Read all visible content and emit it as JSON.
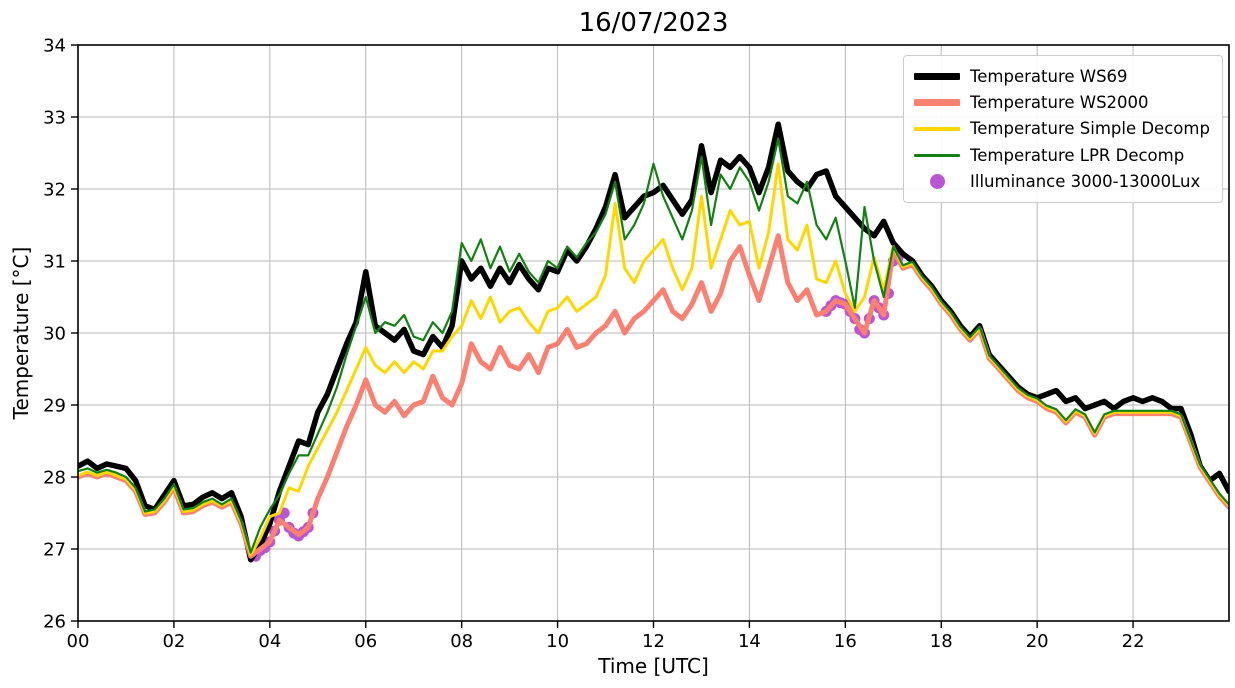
{
  "chart_data": {
    "type": "line",
    "title": "16/07/2023",
    "xlabel": "Time [UTC]",
    "ylabel": "Temperature [°C]",
    "xlim": [
      0,
      24
    ],
    "ylim": [
      26,
      34
    ],
    "grid": true,
    "legend_position": "upper right",
    "x_ticks": {
      "values": [
        0,
        2,
        4,
        6,
        8,
        10,
        12,
        14,
        16,
        18,
        20,
        22
      ],
      "labels": [
        "00",
        "02",
        "04",
        "06",
        "08",
        "10",
        "12",
        "14",
        "16",
        "18",
        "20",
        "22"
      ]
    },
    "y_ticks": {
      "values": [
        26,
        27,
        28,
        29,
        30,
        31,
        32,
        33,
        34
      ],
      "labels": [
        "26",
        "27",
        "28",
        "29",
        "30",
        "31",
        "32",
        "33",
        "34"
      ]
    },
    "x_hours": {
      "start": 0,
      "step": 0.2,
      "count": 121
    },
    "series": [
      {
        "name": "Temperature WS69",
        "id": "temperature-ws69",
        "color": "#000000",
        "width": 5.5,
        "values": [
          28.15,
          28.22,
          28.12,
          28.18,
          28.15,
          28.12,
          27.95,
          27.6,
          27.55,
          27.75,
          27.95,
          27.6,
          27.62,
          27.72,
          27.78,
          27.7,
          27.78,
          27.45,
          26.85,
          27.05,
          27.35,
          27.8,
          28.15,
          28.5,
          28.45,
          28.9,
          29.15,
          29.5,
          29.85,
          30.15,
          30.85,
          30.1,
          30.0,
          29.9,
          30.05,
          29.75,
          29.7,
          29.95,
          29.8,
          30.1,
          31.0,
          30.75,
          30.9,
          30.65,
          30.9,
          30.7,
          30.95,
          30.75,
          30.6,
          30.9,
          30.85,
          31.15,
          31.0,
          31.2,
          31.45,
          31.75,
          32.2,
          31.6,
          31.75,
          31.9,
          31.95,
          32.05,
          31.85,
          31.65,
          31.85,
          32.6,
          31.95,
          32.4,
          32.3,
          32.45,
          32.3,
          31.95,
          32.3,
          32.9,
          32.25,
          32.1,
          32.0,
          32.2,
          32.25,
          31.9,
          31.75,
          31.6,
          31.45,
          31.35,
          31.55,
          31.25,
          31.1,
          31.0,
          30.8,
          30.65,
          30.45,
          30.3,
          30.1,
          29.95,
          30.1,
          29.7,
          29.55,
          29.4,
          29.25,
          29.15,
          29.1,
          29.15,
          29.2,
          29.05,
          29.1,
          28.95,
          29.0,
          29.05,
          28.95,
          29.05,
          29.1,
          29.05,
          29.1,
          29.05,
          28.95,
          28.95,
          28.6,
          28.15,
          27.95,
          28.05,
          27.8
        ]
      },
      {
        "name": "Temperature WS2000",
        "id": "temperature-ws2000",
        "color": "#fa8072",
        "width": 5,
        "values": [
          28.0,
          28.05,
          28.0,
          28.05,
          28.0,
          27.95,
          27.8,
          27.48,
          27.5,
          27.65,
          27.85,
          27.5,
          27.52,
          27.6,
          27.65,
          27.58,
          27.65,
          27.35,
          26.9,
          27.0,
          27.1,
          27.4,
          27.3,
          27.2,
          27.3,
          27.7,
          28.0,
          28.35,
          28.7,
          29.0,
          29.35,
          29.0,
          28.9,
          29.05,
          28.85,
          29.0,
          29.05,
          29.4,
          29.1,
          29.0,
          29.3,
          29.85,
          29.6,
          29.5,
          29.8,
          29.55,
          29.5,
          29.7,
          29.45,
          29.8,
          29.85,
          30.05,
          29.8,
          29.85,
          30.0,
          30.1,
          30.3,
          30.0,
          30.2,
          30.3,
          30.45,
          30.6,
          30.3,
          30.2,
          30.4,
          30.7,
          30.3,
          30.55,
          31.0,
          31.2,
          30.8,
          30.45,
          30.9,
          31.35,
          30.7,
          30.45,
          30.6,
          30.25,
          30.3,
          30.45,
          30.4,
          30.2,
          30.0,
          30.45,
          30.25,
          31.15,
          30.9,
          30.95,
          30.75,
          30.6,
          30.4,
          30.25,
          30.05,
          29.9,
          30.05,
          29.65,
          29.5,
          29.35,
          29.2,
          29.1,
          29.05,
          28.95,
          28.9,
          28.75,
          28.9,
          28.83,
          28.58,
          28.83,
          28.88,
          28.88,
          28.88,
          28.88,
          28.88,
          28.88,
          28.88,
          28.83,
          28.48,
          28.13,
          27.93,
          27.73,
          27.58
        ]
      },
      {
        "name": "Temperature Simple Decomp",
        "id": "temperature-simple-decomp",
        "color": "#ffd700",
        "width": 3,
        "values": [
          28.02,
          28.07,
          28.02,
          28.07,
          28.02,
          27.97,
          27.82,
          27.5,
          27.52,
          27.67,
          27.87,
          27.52,
          27.54,
          27.62,
          27.67,
          27.6,
          27.67,
          27.37,
          26.92,
          27.15,
          27.45,
          27.5,
          27.85,
          27.8,
          28.15,
          28.4,
          28.65,
          28.9,
          29.2,
          29.5,
          29.8,
          29.55,
          29.45,
          29.6,
          29.45,
          29.6,
          29.5,
          29.75,
          29.75,
          29.95,
          30.1,
          30.45,
          30.2,
          30.5,
          30.15,
          30.3,
          30.35,
          30.15,
          30.0,
          30.3,
          30.35,
          30.5,
          30.3,
          30.4,
          30.5,
          30.8,
          31.8,
          30.9,
          30.7,
          31.0,
          31.15,
          31.3,
          30.9,
          30.6,
          30.9,
          31.9,
          30.9,
          31.3,
          31.7,
          31.5,
          31.55,
          30.9,
          31.4,
          32.35,
          31.3,
          31.15,
          31.5,
          30.75,
          30.7,
          31.0,
          30.55,
          30.3,
          30.5,
          31.05,
          30.6,
          31.2,
          30.92,
          30.97,
          30.77,
          30.62,
          30.42,
          30.27,
          30.07,
          29.92,
          30.07,
          29.67,
          29.52,
          29.37,
          29.22,
          29.12,
          29.07,
          28.97,
          28.92,
          28.77,
          28.92,
          28.85,
          28.6,
          28.85,
          28.9,
          28.9,
          28.9,
          28.9,
          28.9,
          28.9,
          28.9,
          28.85,
          28.5,
          28.15,
          27.95,
          27.75,
          27.6
        ]
      },
      {
        "name": "Temperature LPR Decomp",
        "id": "temperature-lpr-decomp",
        "color": "#128112",
        "width": 2.2,
        "values": [
          28.08,
          28.12,
          28.06,
          28.1,
          28.06,
          28.0,
          27.85,
          27.52,
          27.55,
          27.7,
          27.9,
          27.55,
          27.57,
          27.65,
          27.7,
          27.62,
          27.7,
          27.4,
          26.95,
          27.3,
          27.55,
          27.75,
          28.05,
          28.3,
          28.3,
          28.6,
          28.9,
          29.25,
          29.7,
          30.1,
          30.5,
          30.0,
          30.15,
          30.1,
          30.25,
          29.95,
          29.9,
          30.15,
          30.0,
          30.3,
          31.25,
          31.0,
          31.3,
          30.9,
          31.2,
          30.85,
          31.1,
          30.85,
          30.7,
          31.0,
          30.9,
          31.2,
          31.05,
          31.25,
          31.4,
          31.65,
          32.1,
          31.3,
          31.5,
          31.8,
          32.35,
          31.9,
          31.6,
          31.3,
          31.7,
          32.45,
          31.5,
          32.2,
          32.0,
          32.3,
          32.1,
          31.7,
          32.1,
          32.7,
          31.9,
          31.8,
          32.1,
          31.5,
          31.3,
          31.6,
          31.0,
          30.35,
          31.75,
          31.0,
          30.5,
          31.2,
          30.94,
          30.99,
          30.79,
          30.64,
          30.44,
          30.29,
          30.09,
          29.94,
          30.09,
          29.69,
          29.54,
          29.39,
          29.24,
          29.14,
          29.09,
          28.99,
          28.94,
          28.79,
          28.94,
          28.87,
          28.62,
          28.87,
          28.92,
          28.92,
          28.92,
          28.92,
          28.92,
          28.92,
          28.92,
          28.87,
          28.52,
          28.17,
          27.97,
          27.77,
          27.62
        ]
      }
    ],
    "scatter": {
      "name": "Illuminance 3000-13000Lux",
      "id": "illuminance-3000-13000lux",
      "color": "#ba55d3",
      "marker_radius": 5.5,
      "points": [
        [
          3.7,
          26.9
        ],
        [
          3.8,
          26.98
        ],
        [
          3.9,
          27.02
        ],
        [
          4.0,
          27.1
        ],
        [
          4.1,
          27.25
        ],
        [
          4.2,
          27.4
        ],
        [
          4.3,
          27.5
        ],
        [
          4.4,
          27.3
        ],
        [
          4.5,
          27.22
        ],
        [
          4.6,
          27.18
        ],
        [
          4.7,
          27.24
        ],
        [
          4.8,
          27.3
        ],
        [
          4.9,
          27.5
        ],
        [
          15.6,
          30.3
        ],
        [
          15.7,
          30.38
        ],
        [
          15.8,
          30.45
        ],
        [
          15.9,
          30.42
        ],
        [
          16.0,
          30.4
        ],
        [
          16.1,
          30.3
        ],
        [
          16.2,
          30.2
        ],
        [
          16.3,
          30.05
        ],
        [
          16.4,
          30.0
        ],
        [
          16.5,
          30.2
        ],
        [
          16.6,
          30.45
        ],
        [
          16.7,
          30.35
        ],
        [
          16.8,
          30.25
        ],
        [
          16.9,
          30.55
        ],
        [
          17.0,
          31.0
        ],
        [
          17.1,
          31.05
        ]
      ]
    },
    "style": {
      "grid_color": "#b8b8b8",
      "spine_color": "#000000",
      "background": "#ffffff"
    }
  }
}
